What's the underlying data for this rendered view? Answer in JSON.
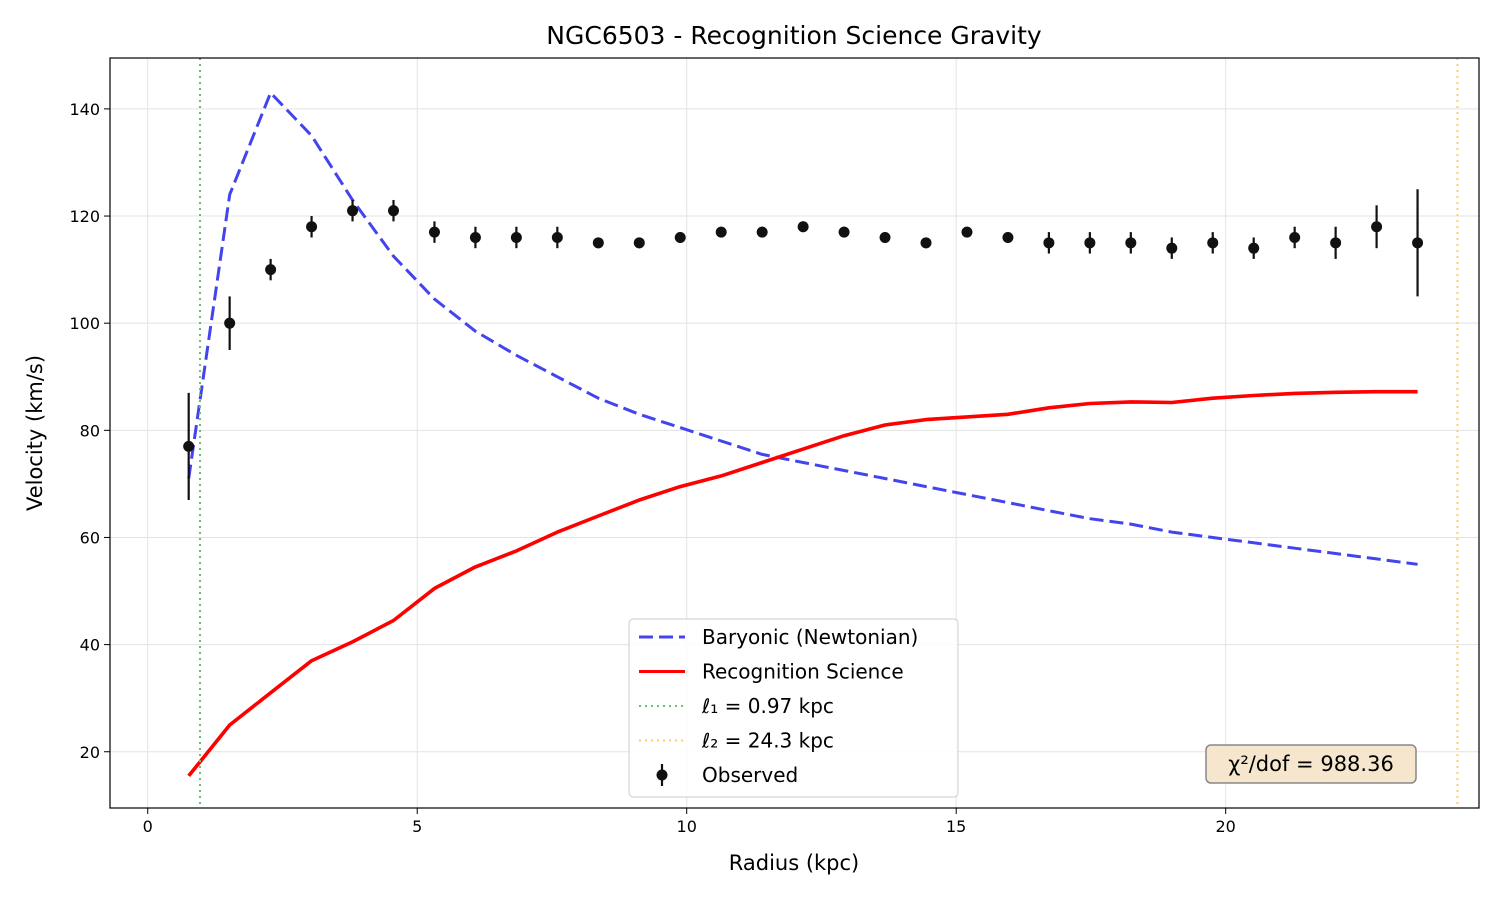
{
  "chart_data": {
    "type": "line",
    "title": "NGC6503 - Recognition Science Gravity",
    "xlabel": "Radius (kpc)",
    "ylabel": "Velocity (km/s)",
    "xlim": [
      -0.7,
      24.7
    ],
    "ylim": [
      9.5,
      149.5
    ],
    "xticks": [
      0,
      5,
      10,
      15,
      20
    ],
    "yticks": [
      20,
      40,
      60,
      80,
      100,
      120,
      140
    ],
    "grid": true,
    "legend_position": "lower-center",
    "series": [
      {
        "name": "Baryonic (Newtonian)",
        "kind": "line",
        "style": "dashed",
        "color": "#4444ee",
        "x": [
          0.76,
          1.52,
          2.28,
          3.04,
          3.8,
          4.56,
          5.32,
          6.08,
          6.84,
          7.6,
          8.36,
          9.12,
          9.88,
          10.64,
          11.4,
          12.16,
          12.92,
          13.68,
          14.44,
          15.2,
          15.96,
          16.72,
          17.48,
          18.24,
          19.0,
          19.76,
          20.52,
          21.28,
          22.04,
          22.8,
          23.56
        ],
        "y": [
          71,
          124,
          143,
          135,
          123,
          112.5,
          104.5,
          98.5,
          94,
          90,
          86,
          83,
          80.5,
          78,
          75.5,
          74,
          72.5,
          71,
          69.5,
          68,
          66.5,
          65,
          63.5,
          62.5,
          61,
          60,
          59,
          58,
          57,
          56,
          55
        ]
      },
      {
        "name": "Recognition Science",
        "kind": "line",
        "style": "solid",
        "color": "#ff0000",
        "x": [
          0.76,
          1.52,
          2.28,
          3.04,
          3.8,
          4.56,
          5.32,
          6.08,
          6.84,
          7.6,
          8.36,
          9.12,
          9.88,
          10.64,
          11.4,
          12.16,
          12.92,
          13.68,
          14.44,
          15.2,
          15.96,
          16.72,
          17.48,
          18.24,
          19.0,
          19.76,
          20.52,
          21.28,
          22.04,
          22.8,
          23.56
        ],
        "y": [
          15.5,
          25,
          31,
          37,
          40.5,
          44.5,
          50.5,
          54.5,
          57.5,
          61,
          64,
          67,
          69.5,
          71.5,
          74,
          76.5,
          79,
          81,
          82,
          82.5,
          83,
          84.2,
          85,
          85.3,
          85.2,
          86,
          86.5,
          86.9,
          87.1,
          87.2,
          87.2
        ]
      },
      {
        "name": "ℓ₁ = 0.97 kpc",
        "kind": "vline",
        "style": "dotted",
        "color": "#6abf6a",
        "x": 0.97
      },
      {
        "name": "ℓ₂ = 24.3 kpc",
        "kind": "vline",
        "style": "dotted",
        "color": "#ffcc70",
        "x": 24.3
      },
      {
        "name": "Observed",
        "kind": "errorbar",
        "color": "#111111",
        "x": [
          0.76,
          1.52,
          2.28,
          3.04,
          3.8,
          4.56,
          5.32,
          6.08,
          6.84,
          7.6,
          8.36,
          9.12,
          9.88,
          10.64,
          11.4,
          12.16,
          12.92,
          13.68,
          14.44,
          15.2,
          15.96,
          16.72,
          17.48,
          18.24,
          19.0,
          19.76,
          20.52,
          21.28,
          22.04,
          22.8,
          23.56
        ],
        "y": [
          77,
          100,
          110,
          118,
          121,
          121,
          117,
          116,
          116,
          116,
          115,
          115,
          116,
          117,
          117,
          118,
          117,
          116,
          115,
          117,
          116,
          115,
          115,
          115,
          114,
          115,
          114,
          116,
          115,
          118,
          115
        ],
        "yerr": [
          10,
          5,
          2,
          2,
          2,
          2,
          2,
          2,
          2,
          2,
          1,
          1,
          1,
          1,
          1,
          1,
          1,
          1,
          1,
          1,
          1,
          2,
          2,
          2,
          2,
          2,
          2,
          2,
          3,
          4,
          10
        ]
      }
    ],
    "annotation": {
      "text": "χ²/dof = 988.36",
      "position": "lower-right",
      "facecolor": "#f5e6cd",
      "edgecolor": "#888888"
    }
  }
}
